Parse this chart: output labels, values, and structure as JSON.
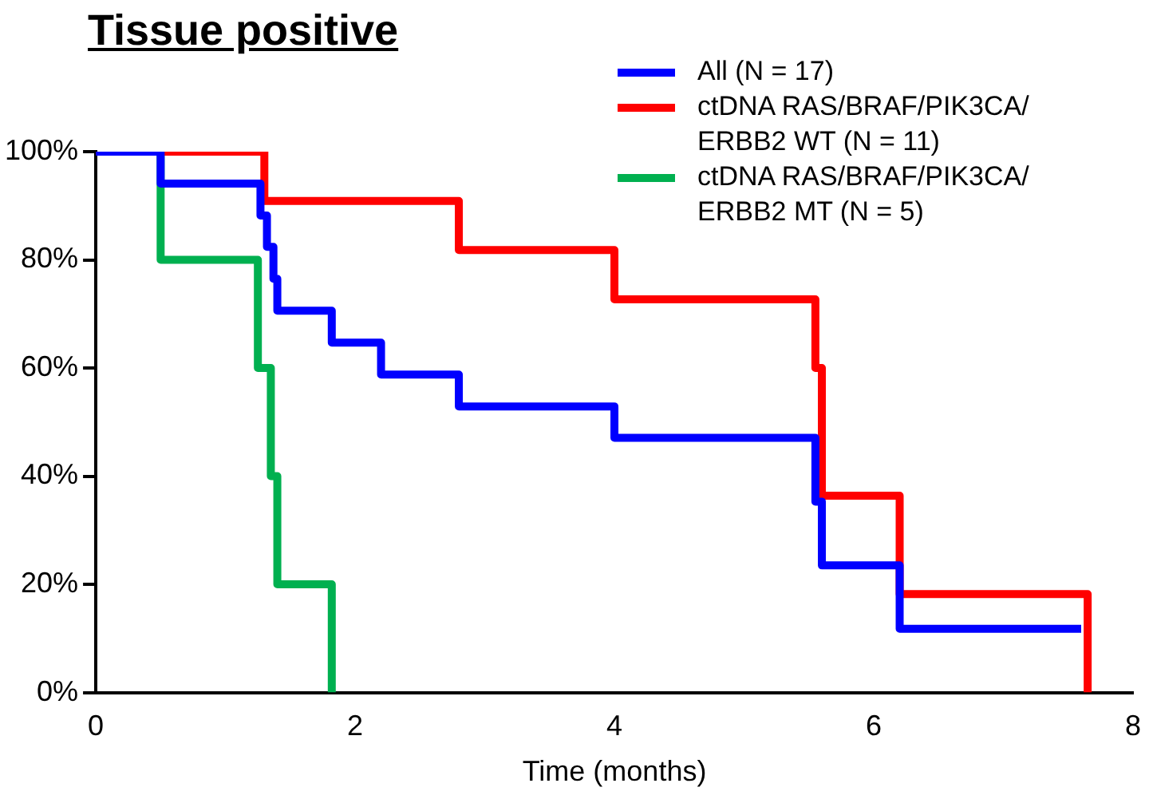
{
  "chart_data": {
    "type": "step",
    "title": "Tissue positive",
    "xlabel": "Time (months)",
    "xlim": [
      0,
      8
    ],
    "xticks": [
      0,
      2,
      4,
      6,
      8
    ],
    "ylim": [
      0,
      100
    ],
    "yticks": [
      {
        "value": 0,
        "label": "0%"
      },
      {
        "value": 20,
        "label": "20%"
      },
      {
        "value": 40,
        "label": "40%"
      },
      {
        "value": 60,
        "label": "60%"
      },
      {
        "value": 80,
        "label": "80%"
      },
      {
        "value": 100,
        "label": "100%"
      }
    ],
    "grid": false,
    "legend": "top right",
    "marker": "none",
    "line_style": "solid",
    "series": [
      {
        "name": "All (N = 17)",
        "color": "#0000ff",
        "x": [
          0,
          0.5,
          1.27,
          1.32,
          1.37,
          1.4,
          1.82,
          2.2,
          2.8,
          4.0,
          5.55,
          5.6,
          6.2,
          7.6
        ],
        "values": [
          100,
          94.1,
          88.2,
          82.4,
          76.5,
          70.6,
          64.7,
          58.8,
          52.9,
          47.1,
          35.3,
          23.5,
          11.8,
          11.8
        ]
      },
      {
        "name": "ctDNA RAS/BRAF/PIK3CA/ ERBB2 WT (N = 11)",
        "color": "#ff0000",
        "x": [
          0,
          1.3,
          2.8,
          4.0,
          5.55,
          5.6,
          6.2,
          7.65
        ],
        "values": [
          100,
          90.9,
          81.8,
          72.7,
          60,
          36.4,
          18.2,
          0
        ]
      },
      {
        "name": "ctDNA RAS/BRAF/PIK3CA/ ERBB2 MT (N = 5)",
        "color": "#00b050",
        "x": [
          0,
          0.5,
          1.25,
          1.35,
          1.4,
          1.82
        ],
        "values": [
          100,
          80,
          60,
          40,
          20,
          0
        ]
      }
    ]
  }
}
